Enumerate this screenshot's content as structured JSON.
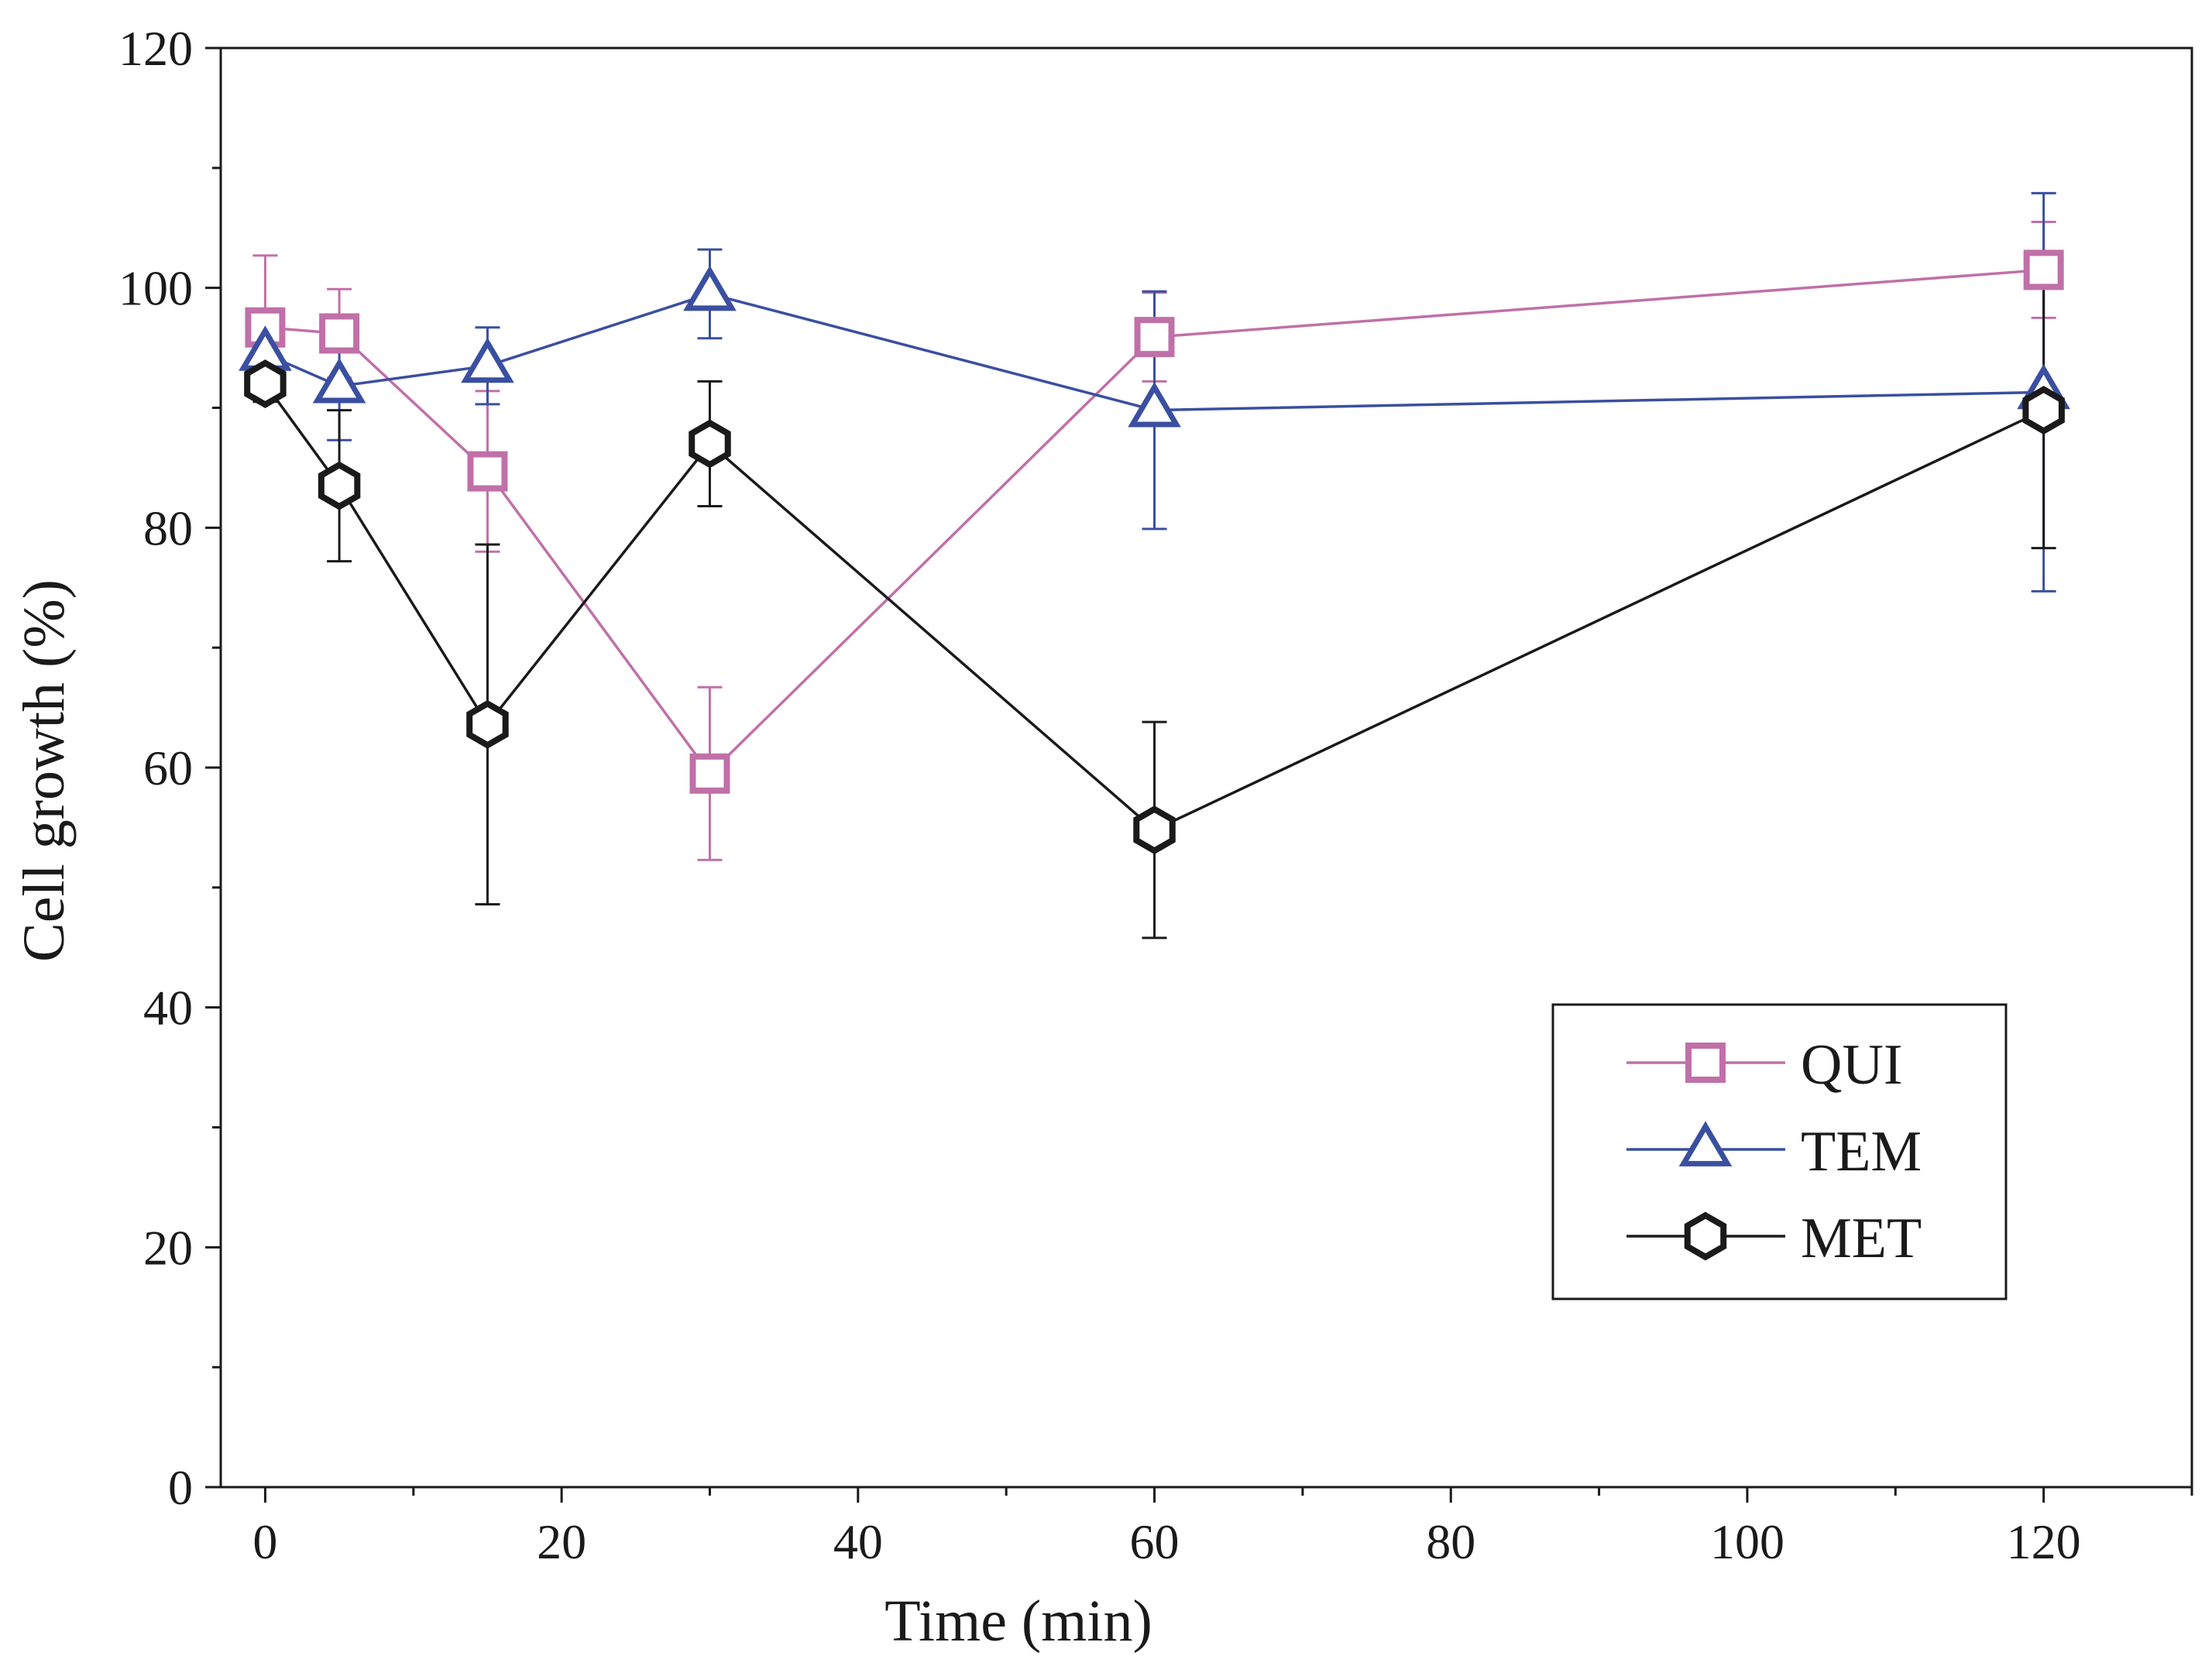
{
  "chart_data": {
    "type": "line",
    "xlabel": "Time (min)",
    "ylabel": "Cell growth (%)",
    "xlim": [
      -3,
      130
    ],
    "ylim": [
      0,
      120
    ],
    "xticks": [
      0,
      20,
      40,
      60,
      80,
      100,
      120
    ],
    "yticks": [
      0,
      20,
      40,
      60,
      80,
      100,
      120
    ],
    "xticks_minor": [
      10,
      30,
      50,
      70,
      90,
      110,
      130
    ],
    "yticks_minor": [
      10,
      30,
      50,
      70,
      90,
      110
    ],
    "grid": false,
    "legend_position": "bottom-right",
    "x": [
      0,
      5,
      15,
      30,
      60,
      120
    ],
    "series": [
      {
        "name": "QUI",
        "marker": "square",
        "color": "#c070a8",
        "values": [
          96.7,
          96.2,
          84.7,
          59.5,
          95.9,
          101.5
        ],
        "error": [
          6.0,
          3.7,
          6.7,
          7.2,
          3.7,
          4.0
        ]
      },
      {
        "name": "TEM",
        "marker": "triangle",
        "color": "#3a4fa0",
        "values": [
          94.5,
          91.8,
          93.5,
          99.5,
          89.8,
          91.3
        ],
        "error": [
          1.5,
          4.5,
          3.2,
          3.7,
          9.9,
          16.6
        ]
      },
      {
        "name": "MET",
        "marker": "hexagon",
        "color": "#1a1a1a",
        "values": [
          92.0,
          83.5,
          63.6,
          87.0,
          54.8,
          89.8
        ],
        "error": [
          1.5,
          6.3,
          15.0,
          5.2,
          9.0,
          11.5
        ]
      }
    ]
  }
}
